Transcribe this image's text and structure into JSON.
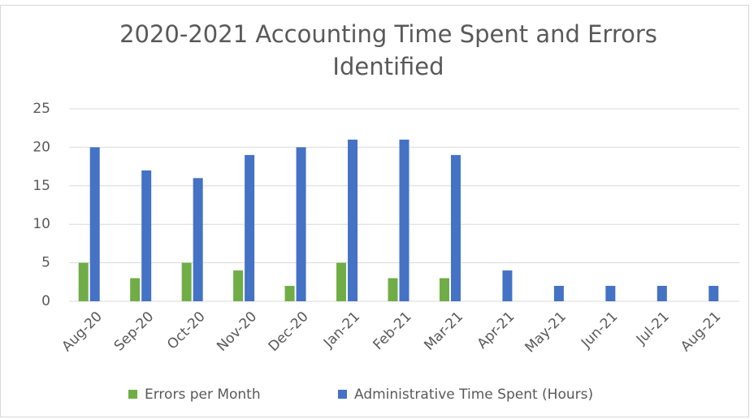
{
  "chart_data": {
    "type": "bar",
    "title": "2020-2021 Accounting Time Spent and Errors Identified",
    "categories": [
      "Aug-20",
      "Sep-20",
      "Oct-20",
      "Nov-20",
      "Dec-20",
      "Jan-21",
      "Feb-21",
      "Mar-21",
      "Apr-21",
      "May-21",
      "Jun-21",
      "Jul-21",
      "Aug-21"
    ],
    "series": [
      {
        "name": "Errors per Month",
        "color": "#70ad47",
        "values": [
          5,
          3,
          5,
          4,
          2,
          5,
          3,
          3,
          0,
          0,
          0,
          0,
          0
        ]
      },
      {
        "name": "Administrative Time Spent (Hours)",
        "color": "#4472c4",
        "values": [
          20,
          17,
          16,
          19,
          20,
          21,
          21,
          19,
          4,
          2,
          2,
          2,
          2
        ]
      }
    ],
    "ylim": [
      0,
      25
    ],
    "yticks": [
      0,
      5,
      10,
      15,
      20,
      25
    ],
    "grid": true,
    "legend": "bottom"
  }
}
